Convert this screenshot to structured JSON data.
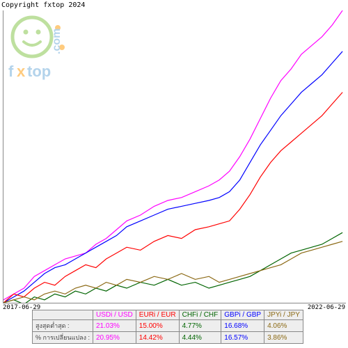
{
  "copyright": "Copyright fxtop 2024",
  "xaxis": {
    "start": "2017-06-29",
    "end": "2022-06-29"
  },
  "chart": {
    "type": "line",
    "background_color": "#ffffff",
    "axis_color": "#888888",
    "xlim": [
      0,
      100
    ],
    "ylim": [
      0,
      100
    ],
    "line_width": 1.2,
    "series": [
      {
        "name": "USDi/USD",
        "color": "#ff00ff",
        "points": [
          [
            0,
            1
          ],
          [
            3,
            3
          ],
          [
            6,
            5
          ],
          [
            9,
            9
          ],
          [
            12,
            11
          ],
          [
            15,
            13
          ],
          [
            18,
            15
          ],
          [
            21,
            16
          ],
          [
            24,
            17
          ],
          [
            27,
            20
          ],
          [
            30,
            22
          ],
          [
            33,
            25
          ],
          [
            36,
            28
          ],
          [
            40,
            30
          ],
          [
            44,
            33
          ],
          [
            48,
            35
          ],
          [
            52,
            36
          ],
          [
            56,
            38
          ],
          [
            60,
            40
          ],
          [
            63,
            42
          ],
          [
            66,
            45
          ],
          [
            69,
            50
          ],
          [
            72,
            56
          ],
          [
            75,
            63
          ],
          [
            78,
            70
          ],
          [
            81,
            76
          ],
          [
            84,
            80
          ],
          [
            87,
            85
          ],
          [
            90,
            88
          ],
          [
            93,
            91
          ],
          [
            96,
            95
          ],
          [
            99,
            100
          ]
        ]
      },
      {
        "name": "GBPi/GBP",
        "color": "#0000ff",
        "points": [
          [
            0,
            0
          ],
          [
            3,
            2
          ],
          [
            6,
            4
          ],
          [
            9,
            7
          ],
          [
            12,
            10
          ],
          [
            15,
            12
          ],
          [
            18,
            13
          ],
          [
            21,
            15
          ],
          [
            24,
            17
          ],
          [
            27,
            19
          ],
          [
            30,
            21
          ],
          [
            33,
            23
          ],
          [
            36,
            26
          ],
          [
            40,
            28
          ],
          [
            44,
            30
          ],
          [
            48,
            32
          ],
          [
            52,
            33
          ],
          [
            56,
            34
          ],
          [
            60,
            35
          ],
          [
            63,
            36
          ],
          [
            66,
            38
          ],
          [
            69,
            42
          ],
          [
            72,
            48
          ],
          [
            75,
            54
          ],
          [
            78,
            59
          ],
          [
            81,
            64
          ],
          [
            84,
            68
          ],
          [
            87,
            72
          ],
          [
            90,
            75
          ],
          [
            93,
            78
          ],
          [
            96,
            82
          ],
          [
            99,
            86
          ]
        ]
      },
      {
        "name": "EURi/EUR",
        "color": "#ff0000",
        "points": [
          [
            0,
            0
          ],
          [
            3,
            3
          ],
          [
            6,
            2
          ],
          [
            9,
            5
          ],
          [
            12,
            7
          ],
          [
            15,
            6
          ],
          [
            18,
            9
          ],
          [
            21,
            11
          ],
          [
            24,
            13
          ],
          [
            27,
            12
          ],
          [
            30,
            15
          ],
          [
            33,
            17
          ],
          [
            36,
            19
          ],
          [
            40,
            18
          ],
          [
            44,
            21
          ],
          [
            48,
            23
          ],
          [
            52,
            22
          ],
          [
            56,
            25
          ],
          [
            60,
            26
          ],
          [
            63,
            27
          ],
          [
            66,
            28
          ],
          [
            69,
            32
          ],
          [
            72,
            37
          ],
          [
            75,
            43
          ],
          [
            78,
            48
          ],
          [
            81,
            52
          ],
          [
            84,
            55
          ],
          [
            87,
            58
          ],
          [
            90,
            61
          ],
          [
            93,
            64
          ],
          [
            96,
            68
          ],
          [
            99,
            72
          ]
        ]
      },
      {
        "name": "CHFi/CHF",
        "color": "#006400",
        "points": [
          [
            0,
            0
          ],
          [
            3,
            1
          ],
          [
            6,
            -0.5
          ],
          [
            9,
            2
          ],
          [
            12,
            1
          ],
          [
            15,
            3
          ],
          [
            18,
            2
          ],
          [
            21,
            4
          ],
          [
            24,
            3
          ],
          [
            27,
            5
          ],
          [
            30,
            4
          ],
          [
            33,
            6
          ],
          [
            36,
            5
          ],
          [
            40,
            7
          ],
          [
            44,
            6
          ],
          [
            48,
            8
          ],
          [
            52,
            6
          ],
          [
            56,
            7
          ],
          [
            60,
            5
          ],
          [
            63,
            6
          ],
          [
            66,
            7
          ],
          [
            69,
            8
          ],
          [
            72,
            9
          ],
          [
            75,
            11
          ],
          [
            78,
            13
          ],
          [
            81,
            15
          ],
          [
            84,
            17
          ],
          [
            87,
            18
          ],
          [
            90,
            19
          ],
          [
            93,
            20
          ],
          [
            96,
            22
          ],
          [
            99,
            24
          ]
        ]
      },
      {
        "name": "JPYi/JPY",
        "color": "#8b6914",
        "points": [
          [
            0,
            0
          ],
          [
            3,
            1
          ],
          [
            6,
            2
          ],
          [
            9,
            1
          ],
          [
            12,
            3
          ],
          [
            15,
            4
          ],
          [
            18,
            3
          ],
          [
            21,
            5
          ],
          [
            24,
            6
          ],
          [
            27,
            5
          ],
          [
            30,
            7
          ],
          [
            33,
            6
          ],
          [
            36,
            8
          ],
          [
            40,
            7
          ],
          [
            44,
            9
          ],
          [
            48,
            8
          ],
          [
            52,
            10
          ],
          [
            56,
            8
          ],
          [
            60,
            9
          ],
          [
            63,
            7
          ],
          [
            66,
            8
          ],
          [
            69,
            9
          ],
          [
            72,
            10
          ],
          [
            75,
            11
          ],
          [
            78,
            12
          ],
          [
            81,
            13
          ],
          [
            84,
            15
          ],
          [
            87,
            17
          ],
          [
            90,
            18
          ],
          [
            93,
            19
          ],
          [
            96,
            20
          ],
          [
            99,
            21
          ]
        ]
      }
    ]
  },
  "legend": {
    "header_bg": "#eeeeee",
    "cell_bg": "#eeeeee",
    "border_color": "#888888",
    "columns": [
      {
        "label": "USDi / USD",
        "color": "#ff00ff"
      },
      {
        "label": "EURi / EUR",
        "color": "#ff0000"
      },
      {
        "label": "CHFi / CHF",
        "color": "#006400"
      },
      {
        "label": "GBPi / GBP",
        "color": "#0000ff"
      },
      {
        "label": "JPYi / JPY",
        "color": "#8b6914"
      }
    ],
    "rows": [
      {
        "label": "สูงสุดต่ำสุด :",
        "values": [
          "21.03%",
          "15.00%",
          "4.77%",
          "16.68%",
          "4.06%"
        ]
      },
      {
        "label": "% การเปลี่ยนแปลง :",
        "values": [
          "20.95%",
          "14.42%",
          "4.44%",
          "16.57%",
          "3.86%"
        ]
      }
    ]
  },
  "watermark": {
    "face_stroke": "#7fc241",
    "dot_color": "#ff9900",
    "text_color": "#6aa8d8",
    "brand_f": "f",
    "brand_x": "x",
    "brand_top": "top",
    "brand_com": ".com"
  }
}
